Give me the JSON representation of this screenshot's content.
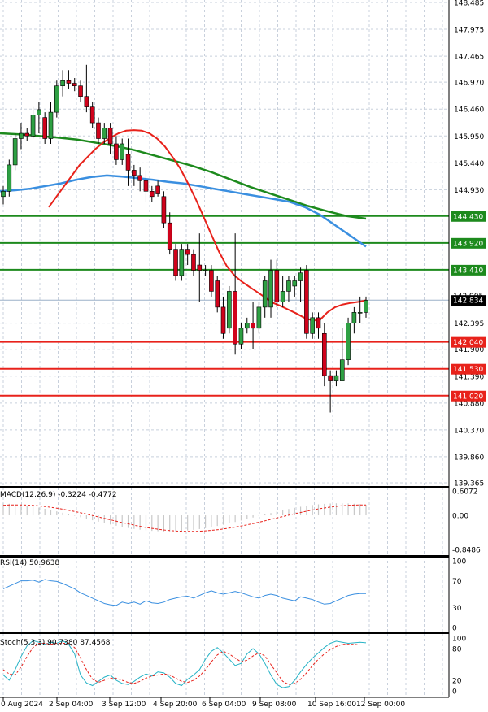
{
  "colors": {
    "background": "#ffffff",
    "grid": "#c8d0dc",
    "bull": "#2ea043",
    "bear": "#d0021b",
    "ma_fast": "#e8221b",
    "ma_mid": "#3a8fe0",
    "ma_slow": "#1d8a1d",
    "support": "#e8221b",
    "resistance": "#1d8a1d",
    "macd_hist": "#c8c8c8",
    "macd_signal": "#e8221b",
    "rsi": "#3a8fe0",
    "stoch_k": "#27b3c6",
    "stoch_d": "#e8221b"
  },
  "chart_data": [
    {
      "type": "candlestick",
      "price_ticks": [
        "148.485",
        "147.975",
        "147.465",
        "146.970",
        "146.460",
        "145.950",
        "145.440",
        "144.930",
        "142.395",
        "141.900",
        "141.390",
        "140.880",
        "140.370",
        "139.860",
        "139.365"
      ],
      "ylim": [
        139.365,
        148.485
      ],
      "x_labels": [
        "0 Aug 2024",
        "2 Sep 04:00",
        "3 Sep 12:00",
        "4 Sep 20:00",
        "6 Sep 04:00",
        "9 Sep 08:00",
        "10 Sep 16:00",
        "12 Sep 00:00"
      ],
      "levels": [
        {
          "value": 144.43,
          "label": "144.430",
          "kind": "resistance"
        },
        {
          "value": 143.92,
          "label": "143.920",
          "kind": "resistance"
        },
        {
          "value": 143.41,
          "label": "143.410",
          "kind": "resistance"
        },
        {
          "value": 142.04,
          "label": "142.040",
          "kind": "support"
        },
        {
          "value": 141.53,
          "label": "141.530",
          "kind": "support"
        },
        {
          "value": 141.02,
          "label": "141.020",
          "kind": "support"
        }
      ],
      "current_price": {
        "value": 142.834,
        "label": "142.834"
      },
      "partial_label": "142.905",
      "candles": [
        [
          144.8,
          145.0,
          144.65,
          144.9
        ],
        [
          144.9,
          145.5,
          144.8,
          145.4
        ],
        [
          145.4,
          146.0,
          145.3,
          145.9
        ],
        [
          145.9,
          146.2,
          145.7,
          146.0
        ],
        [
          146.0,
          146.1,
          145.85,
          145.95
        ],
        [
          145.95,
          146.5,
          145.9,
          146.35
        ],
        [
          146.35,
          146.6,
          146.0,
          146.45
        ],
        [
          146.3,
          146.4,
          145.8,
          145.9
        ],
        [
          145.9,
          146.6,
          145.8,
          146.4
        ],
        [
          146.4,
          147.0,
          146.3,
          146.9
        ],
        [
          146.9,
          147.2,
          146.7,
          147.0
        ],
        [
          147.0,
          147.2,
          146.85,
          146.95
        ],
        [
          146.95,
          147.05,
          146.8,
          146.9
        ],
        [
          146.9,
          147.0,
          146.6,
          146.7
        ],
        [
          146.7,
          147.3,
          146.4,
          146.5
        ],
        [
          146.5,
          146.6,
          146.1,
          146.2
        ],
        [
          146.2,
          146.3,
          145.8,
          145.9
        ],
        [
          145.9,
          146.2,
          145.8,
          146.1
        ],
        [
          146.1,
          146.2,
          145.6,
          145.8
        ],
        [
          145.8,
          145.95,
          145.4,
          145.5
        ],
        [
          145.5,
          145.9,
          145.4,
          145.8
        ],
        [
          145.6,
          145.9,
          145.0,
          145.3
        ],
        [
          145.3,
          145.4,
          145.0,
          145.2
        ],
        [
          145.2,
          145.35,
          144.9,
          145.1
        ],
        [
          145.1,
          145.3,
          144.7,
          144.9
        ],
        [
          144.9,
          145.0,
          144.7,
          144.8
        ],
        [
          145.0,
          145.1,
          144.8,
          144.85
        ],
        [
          144.8,
          144.9,
          144.2,
          144.3
        ],
        [
          144.3,
          144.5,
          143.7,
          143.8
        ],
        [
          143.8,
          143.9,
          143.2,
          143.3
        ],
        [
          143.3,
          143.9,
          143.2,
          143.8
        ],
        [
          143.8,
          143.9,
          143.5,
          143.7
        ],
        [
          143.7,
          143.8,
          143.3,
          143.4
        ],
        [
          143.5,
          144.1,
          142.8,
          143.4
        ],
        [
          143.4,
          143.5,
          143.3,
          143.4
        ],
        [
          143.4,
          143.5,
          142.9,
          143.0
        ],
        [
          143.2,
          143.3,
          142.6,
          142.7
        ],
        [
          142.7,
          142.9,
          142.1,
          142.2
        ],
        [
          142.3,
          143.1,
          142.2,
          143.0
        ],
        [
          143.0,
          144.1,
          141.8,
          142.0
        ],
        [
          142.0,
          142.4,
          141.9,
          142.3
        ],
        [
          142.3,
          142.5,
          142.2,
          142.4
        ],
        [
          142.4,
          142.8,
          141.9,
          142.3
        ],
        [
          142.3,
          142.8,
          142.2,
          142.7
        ],
        [
          142.7,
          143.3,
          142.5,
          143.2
        ],
        [
          142.7,
          143.6,
          142.5,
          143.4
        ],
        [
          143.4,
          143.6,
          142.7,
          142.8
        ],
        [
          142.8,
          143.3,
          142.7,
          143.0
        ],
        [
          143.0,
          143.3,
          142.8,
          143.2
        ],
        [
          143.1,
          143.3,
          142.9,
          143.2
        ],
        [
          143.2,
          143.45,
          142.8,
          143.35
        ],
        [
          143.4,
          143.5,
          142.1,
          142.2
        ],
        [
          142.2,
          142.6,
          142.1,
          142.5
        ],
        [
          142.5,
          142.6,
          142.1,
          142.3
        ],
        [
          142.2,
          142.4,
          141.2,
          141.4
        ],
        [
          141.4,
          141.5,
          140.7,
          141.3
        ],
        [
          141.3,
          141.5,
          141.2,
          141.4
        ],
        [
          141.3,
          142.3,
          141.3,
          141.7
        ],
        [
          141.7,
          142.5,
          141.6,
          142.4
        ],
        [
          142.4,
          142.7,
          142.2,
          142.6
        ],
        [
          142.6,
          142.9,
          142.4,
          142.6
        ],
        [
          142.6,
          142.9,
          142.5,
          142.83
        ]
      ],
      "ma_fast": [
        144.6,
        144.8,
        145.0,
        145.2,
        145.4,
        145.55,
        145.7,
        145.82,
        145.92,
        146.0,
        146.05,
        146.06,
        146.05,
        146.0,
        145.9,
        145.75,
        145.55,
        145.33,
        145.05,
        144.75,
        144.42,
        144.08,
        143.75,
        143.48,
        143.3,
        143.18,
        143.08,
        142.98,
        142.88,
        142.78,
        142.72,
        142.65,
        142.58,
        142.5,
        142.45,
        142.45,
        142.6,
        142.7,
        142.75,
        142.78,
        142.8,
        142.83
      ],
      "ma_mid": [
        144.9,
        144.92,
        144.95,
        145.0,
        145.05,
        145.12,
        145.17,
        145.2,
        145.18,
        145.15,
        145.12,
        145.08,
        145.05,
        145.0,
        144.95,
        144.9,
        144.85,
        144.8,
        144.75,
        144.7,
        144.6,
        144.45,
        144.25,
        144.05,
        143.85
      ],
      "ma_slow": [
        146.0,
        145.98,
        145.95,
        145.92,
        145.88,
        145.82,
        145.76,
        145.68,
        145.58,
        145.48,
        145.38,
        145.26,
        145.12,
        144.98,
        144.86,
        144.74,
        144.62,
        144.52,
        144.43,
        144.38
      ],
      "indicators": {
        "macd": {
          "label": "MACD(12,26,9) -0.3224 -0.4772",
          "ticks": [
            "0.6072",
            "0.00",
            "-0.8486"
          ],
          "ylim": [
            -0.8486,
            0.6072
          ]
        },
        "rsi": {
          "label": "RSI(14) 50.9638",
          "ticks": [
            "100",
            "70",
            "30",
            "0"
          ],
          "ylim": [
            0,
            100
          ]
        },
        "stoch": {
          "label": "Stoch(5,3,3) 90.7380 87.4568",
          "ticks": [
            "100",
            "80",
            "20",
            "0"
          ],
          "ylim": [
            0,
            100
          ]
        }
      }
    }
  ]
}
